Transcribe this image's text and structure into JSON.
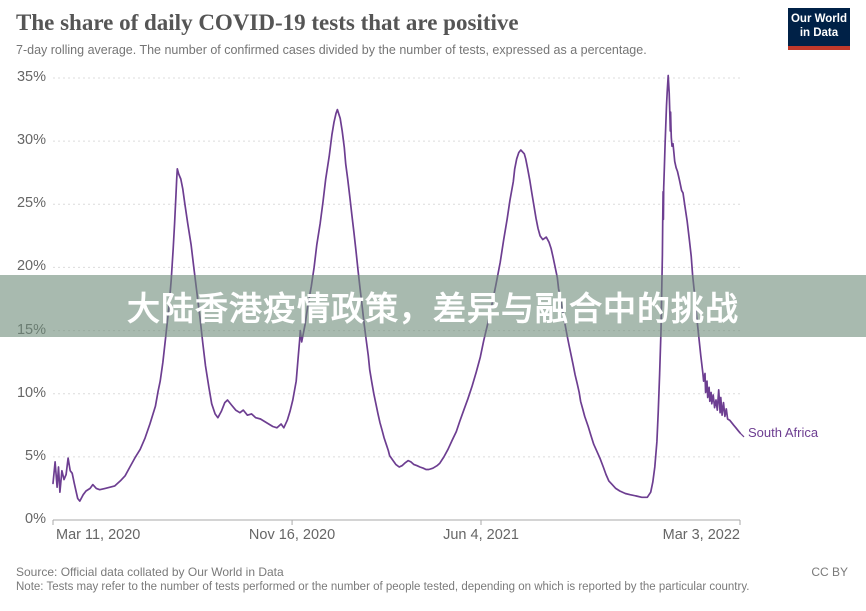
{
  "header": {
    "title": "The share of daily COVID-19 tests that are positive",
    "subtitle": "7-day rolling average. The number of confirmed cases divided by the number of tests, expressed as a percentage.",
    "logo": {
      "line1": "Our World",
      "line2": "in Data",
      "bg": "#002147",
      "stripe": "#c0392b"
    }
  },
  "overlay": {
    "text": "大陆香港疫情政策，差异与融合中的挑战",
    "bg_rgba": "rgba(110,140,122,0.6)",
    "text_color": "#ffffff"
  },
  "footer": {
    "source": "Source: Official data collated by Our World in Data",
    "license": "CC BY",
    "note": "Note: Tests may refer to the number of tests performed or the number of people tested, depending on which is reported by the particular country."
  },
  "chart_data": {
    "type": "line",
    "title": "The share of daily COVID-19 tests that are positive",
    "ylabel": "",
    "xlabel": "",
    "ylim": [
      0,
      35
    ],
    "grid": "horizontal-dashed",
    "legend_position": "inline-end-of-line",
    "y_ticks": [
      "0%",
      "5%",
      "10%",
      "15%",
      "20%",
      "25%",
      "30%",
      "35%"
    ],
    "x_ticks": [
      {
        "label": "Mar 11, 2020",
        "f": 0.0,
        "align": "left"
      },
      {
        "label": "Nov 16, 2020",
        "f": 0.348,
        "align": "center"
      },
      {
        "label": "Jun 4, 2021",
        "f": 0.623,
        "align": "center"
      },
      {
        "label": "Mar 3, 2022",
        "f": 1.0,
        "align": "right"
      }
    ],
    "series": [
      {
        "name": "South Africa",
        "color": "#6d3e91",
        "x_is": "fraction of axis from Mar 11, 2020 to Mar 3, 2022",
        "y_is": "positive test share, percent",
        "points": [
          [
            0.0,
            2.9
          ],
          [
            0.003,
            4.6
          ],
          [
            0.006,
            2.6
          ],
          [
            0.008,
            4.2
          ],
          [
            0.01,
            2.2
          ],
          [
            0.013,
            3.9
          ],
          [
            0.016,
            3.2
          ],
          [
            0.019,
            3.6
          ],
          [
            0.022,
            4.9
          ],
          [
            0.025,
            3.9
          ],
          [
            0.028,
            3.7
          ],
          [
            0.031,
            2.9
          ],
          [
            0.033,
            2.4
          ],
          [
            0.036,
            1.7
          ],
          [
            0.039,
            1.5
          ],
          [
            0.044,
            2.0
          ],
          [
            0.048,
            2.3
          ],
          [
            0.054,
            2.5
          ],
          [
            0.058,
            2.8
          ],
          [
            0.063,
            2.5
          ],
          [
            0.068,
            2.4
          ],
          [
            0.076,
            2.5
          ],
          [
            0.083,
            2.6
          ],
          [
            0.09,
            2.7
          ],
          [
            0.098,
            3.1
          ],
          [
            0.105,
            3.5
          ],
          [
            0.112,
            4.2
          ],
          [
            0.119,
            4.9
          ],
          [
            0.127,
            5.6
          ],
          [
            0.134,
            6.5
          ],
          [
            0.141,
            7.6
          ],
          [
            0.149,
            9.0
          ],
          [
            0.153,
            10.2
          ],
          [
            0.156,
            11.0
          ],
          [
            0.16,
            12.5
          ],
          [
            0.164,
            14.5
          ],
          [
            0.169,
            17.0
          ],
          [
            0.172,
            19.0
          ],
          [
            0.175,
            21.5
          ],
          [
            0.177,
            23.5
          ],
          [
            0.179,
            25.8
          ],
          [
            0.18,
            27.0
          ],
          [
            0.181,
            27.8
          ],
          [
            0.183,
            27.4
          ],
          [
            0.186,
            27.0
          ],
          [
            0.189,
            26.2
          ],
          [
            0.192,
            25.0
          ],
          [
            0.196,
            23.5
          ],
          [
            0.201,
            21.8
          ],
          [
            0.205,
            20.0
          ],
          [
            0.209,
            18.2
          ],
          [
            0.214,
            16.0
          ],
          [
            0.218,
            14.0
          ],
          [
            0.222,
            12.2
          ],
          [
            0.227,
            10.5
          ],
          [
            0.231,
            9.2
          ],
          [
            0.236,
            8.4
          ],
          [
            0.24,
            8.1
          ],
          [
            0.245,
            8.6
          ],
          [
            0.25,
            9.3
          ],
          [
            0.254,
            9.5
          ],
          [
            0.26,
            9.1
          ],
          [
            0.266,
            8.7
          ],
          [
            0.272,
            8.5
          ],
          [
            0.277,
            8.7
          ],
          [
            0.283,
            8.3
          ],
          [
            0.289,
            8.4
          ],
          [
            0.295,
            8.1
          ],
          [
            0.302,
            8.0
          ],
          [
            0.308,
            7.8
          ],
          [
            0.314,
            7.6
          ],
          [
            0.32,
            7.4
          ],
          [
            0.326,
            7.3
          ],
          [
            0.332,
            7.6
          ],
          [
            0.336,
            7.3
          ],
          [
            0.341,
            7.9
          ],
          [
            0.345,
            8.6
          ],
          [
            0.349,
            9.5
          ],
          [
            0.354,
            11.0
          ],
          [
            0.357,
            13.0
          ],
          [
            0.359,
            14.2
          ],
          [
            0.36,
            15.0
          ],
          [
            0.362,
            14.1
          ],
          [
            0.367,
            15.5
          ],
          [
            0.371,
            17.0
          ],
          [
            0.376,
            18.5
          ],
          [
            0.38,
            20.0
          ],
          [
            0.384,
            21.8
          ],
          [
            0.389,
            23.5
          ],
          [
            0.393,
            25.2
          ],
          [
            0.397,
            27.0
          ],
          [
            0.402,
            28.8
          ],
          [
            0.406,
            30.5
          ],
          [
            0.409,
            31.5
          ],
          [
            0.412,
            32.2
          ],
          [
            0.414,
            32.5
          ],
          [
            0.418,
            31.8
          ],
          [
            0.421,
            30.8
          ],
          [
            0.424,
            29.5
          ],
          [
            0.426,
            28.2
          ],
          [
            0.429,
            27.0
          ],
          [
            0.432,
            25.6
          ],
          [
            0.435,
            24.2
          ],
          [
            0.438,
            22.8
          ],
          [
            0.441,
            21.3
          ],
          [
            0.444,
            19.8
          ],
          [
            0.447,
            18.3
          ],
          [
            0.45,
            16.9
          ],
          [
            0.453,
            15.5
          ],
          [
            0.456,
            14.2
          ],
          [
            0.459,
            13.0
          ],
          [
            0.461,
            11.9
          ],
          [
            0.464,
            10.9
          ],
          [
            0.467,
            10.0
          ],
          [
            0.47,
            9.2
          ],
          [
            0.473,
            8.4
          ],
          [
            0.476,
            7.7
          ],
          [
            0.479,
            7.1
          ],
          [
            0.482,
            6.5
          ],
          [
            0.485,
            6.0
          ],
          [
            0.488,
            5.5
          ],
          [
            0.49,
            5.1
          ],
          [
            0.495,
            4.7
          ],
          [
            0.499,
            4.4
          ],
          [
            0.504,
            4.2
          ],
          [
            0.508,
            4.3
          ],
          [
            0.512,
            4.5
          ],
          [
            0.517,
            4.7
          ],
          [
            0.521,
            4.6
          ],
          [
            0.525,
            4.4
          ],
          [
            0.53,
            4.3
          ],
          [
            0.534,
            4.2
          ],
          [
            0.539,
            4.1
          ],
          [
            0.543,
            4.0
          ],
          [
            0.547,
            4.0
          ],
          [
            0.553,
            4.1
          ],
          [
            0.559,
            4.3
          ],
          [
            0.563,
            4.5
          ],
          [
            0.569,
            5.0
          ],
          [
            0.575,
            5.6
          ],
          [
            0.581,
            6.3
          ],
          [
            0.587,
            7.0
          ],
          [
            0.592,
            7.8
          ],
          [
            0.598,
            8.7
          ],
          [
            0.604,
            9.6
          ],
          [
            0.61,
            10.6
          ],
          [
            0.616,
            11.7
          ],
          [
            0.622,
            12.9
          ],
          [
            0.627,
            14.2
          ],
          [
            0.633,
            15.6
          ],
          [
            0.639,
            17.1
          ],
          [
            0.645,
            18.7
          ],
          [
            0.651,
            20.4
          ],
          [
            0.656,
            22.2
          ],
          [
            0.661,
            23.8
          ],
          [
            0.665,
            25.3
          ],
          [
            0.67,
            26.8
          ],
          [
            0.672,
            27.8
          ],
          [
            0.675,
            28.6
          ],
          [
            0.678,
            29.1
          ],
          [
            0.681,
            29.3
          ],
          [
            0.686,
            29.0
          ],
          [
            0.688,
            28.6
          ],
          [
            0.691,
            27.8
          ],
          [
            0.694,
            26.9
          ],
          [
            0.697,
            25.9
          ],
          [
            0.7,
            24.9
          ],
          [
            0.703,
            23.9
          ],
          [
            0.706,
            23.1
          ],
          [
            0.709,
            22.5
          ],
          [
            0.713,
            22.2
          ],
          [
            0.718,
            22.4
          ],
          [
            0.722,
            22.0
          ],
          [
            0.725,
            21.5
          ],
          [
            0.728,
            20.8
          ],
          [
            0.731,
            20.0
          ],
          [
            0.734,
            19.2
          ],
          [
            0.736,
            18.3
          ],
          [
            0.739,
            17.4
          ],
          [
            0.742,
            16.5
          ],
          [
            0.745,
            15.6
          ],
          [
            0.748,
            14.7
          ],
          [
            0.751,
            13.9
          ],
          [
            0.754,
            13.1
          ],
          [
            0.757,
            12.3
          ],
          [
            0.76,
            11.5
          ],
          [
            0.763,
            10.8
          ],
          [
            0.766,
            10.1
          ],
          [
            0.768,
            9.4
          ],
          [
            0.771,
            8.8
          ],
          [
            0.774,
            8.2
          ],
          [
            0.779,
            7.4
          ],
          [
            0.783,
            6.7
          ],
          [
            0.787,
            6.0
          ],
          [
            0.792,
            5.4
          ],
          [
            0.796,
            4.9
          ],
          [
            0.801,
            4.2
          ],
          [
            0.805,
            3.6
          ],
          [
            0.809,
            3.1
          ],
          [
            0.814,
            2.8
          ],
          [
            0.819,
            2.5
          ],
          [
            0.825,
            2.3
          ],
          [
            0.833,
            2.1
          ],
          [
            0.84,
            2.0
          ],
          [
            0.849,
            1.9
          ],
          [
            0.857,
            1.8
          ],
          [
            0.865,
            1.8
          ],
          [
            0.87,
            2.2
          ],
          [
            0.873,
            3.0
          ],
          [
            0.876,
            4.2
          ],
          [
            0.879,
            6.2
          ],
          [
            0.881,
            8.5
          ],
          [
            0.883,
            11.5
          ],
          [
            0.885,
            15.0
          ],
          [
            0.886,
            18.0
          ],
          [
            0.887,
            21.0
          ],
          [
            0.8875,
            23.5
          ],
          [
            0.888,
            26.0
          ],
          [
            0.8885,
            23.8
          ],
          [
            0.889,
            26.3
          ],
          [
            0.89,
            28.0
          ],
          [
            0.891,
            29.8
          ],
          [
            0.892,
            31.3
          ],
          [
            0.893,
            32.8
          ],
          [
            0.894,
            33.9
          ],
          [
            0.8955,
            35.2
          ],
          [
            0.897,
            33.8
          ],
          [
            0.898,
            32.0
          ],
          [
            0.8985,
            30.8
          ],
          [
            0.899,
            32.3
          ],
          [
            0.8995,
            31.0
          ],
          [
            0.9,
            30.3
          ],
          [
            0.901,
            29.6
          ],
          [
            0.9025,
            29.8
          ],
          [
            0.904,
            29.0
          ],
          [
            0.905,
            28.4
          ],
          [
            0.907,
            27.9
          ],
          [
            0.909,
            27.6
          ],
          [
            0.912,
            26.9
          ],
          [
            0.915,
            26.1
          ],
          [
            0.917,
            25.9
          ],
          [
            0.92,
            24.8
          ],
          [
            0.923,
            23.7
          ],
          [
            0.926,
            22.3
          ],
          [
            0.929,
            20.9
          ],
          [
            0.931,
            19.4
          ],
          [
            0.934,
            17.8
          ],
          [
            0.937,
            16.1
          ],
          [
            0.94,
            14.5
          ],
          [
            0.943,
            13.0
          ],
          [
            0.946,
            11.6
          ],
          [
            0.947,
            11.0
          ],
          [
            0.949,
            11.6
          ],
          [
            0.95,
            10.1
          ],
          [
            0.952,
            11.0
          ],
          [
            0.953,
            9.7
          ],
          [
            0.955,
            10.5
          ],
          [
            0.956,
            9.4
          ],
          [
            0.958,
            10.1
          ],
          [
            0.959,
            9.2
          ],
          [
            0.961,
            9.9
          ],
          [
            0.963,
            8.9
          ],
          [
            0.965,
            9.5
          ],
          [
            0.967,
            8.7
          ],
          [
            0.969,
            10.3
          ],
          [
            0.971,
            8.5
          ],
          [
            0.972,
            9.7
          ],
          [
            0.974,
            8.3
          ],
          [
            0.976,
            9.3
          ],
          [
            0.978,
            8.2
          ],
          [
            0.98,
            8.8
          ],
          [
            0.982,
            8.0
          ],
          [
            0.985,
            7.9
          ],
          [
            0.988,
            7.7
          ],
          [
            0.991,
            7.5
          ],
          [
            0.994,
            7.3
          ],
          [
            0.997,
            7.1
          ],
          [
            1.0,
            6.9
          ]
        ]
      }
    ]
  }
}
